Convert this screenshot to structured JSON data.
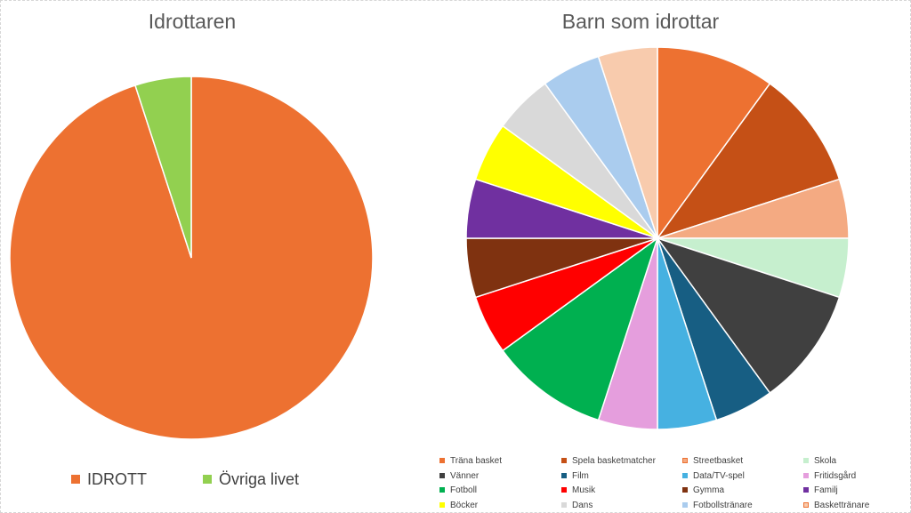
{
  "chart_data": [
    {
      "type": "pie",
      "title": "Idrottaren",
      "legend_position": "bottom",
      "slices": [
        {
          "label": "IDROTT",
          "value": 95,
          "color": "#ED7131"
        },
        {
          "label": "Övriga livet",
          "value": 5,
          "color": "#92D050"
        }
      ]
    },
    {
      "type": "pie",
      "title": "Barn som idrottar",
      "legend_position": "bottom",
      "slices": [
        {
          "label": "Träna basket",
          "value": 10,
          "color": "#ED7131"
        },
        {
          "label": "Spela basketmatcher",
          "value": 10,
          "color": "#C55016"
        },
        {
          "label": "Streetbasket",
          "value": 5,
          "color": "#F4AA82"
        },
        {
          "label": "Skola",
          "value": 5,
          "color": "#C6EFCE"
        },
        {
          "label": "Vänner",
          "value": 10,
          "color": "#404040"
        },
        {
          "label": "Film",
          "value": 5,
          "color": "#175E83"
        },
        {
          "label": "Data/TV-spel",
          "value": 5,
          "color": "#46B1E1"
        },
        {
          "label": "Fritidsgård",
          "value": 5,
          "color": "#E59EDD"
        },
        {
          "label": "Fotboll",
          "value": 10,
          "color": "#00B050"
        },
        {
          "label": "Musik",
          "value": 5,
          "color": "#FF0000"
        },
        {
          "label": "Gymma",
          "value": 5,
          "color": "#7F3210"
        },
        {
          "label": "Familj",
          "value": 5,
          "color": "#7030A0"
        },
        {
          "label": "Böcker",
          "value": 5,
          "color": "#FFFF00"
        },
        {
          "label": "Dans",
          "value": 5,
          "color": "#D9D9D9"
        },
        {
          "label": "Fotbollstränare",
          "value": 5,
          "color": "#AACCEE"
        },
        {
          "label": "Baskettränare",
          "value": 5,
          "color": "#F8CBAD"
        }
      ]
    }
  ]
}
